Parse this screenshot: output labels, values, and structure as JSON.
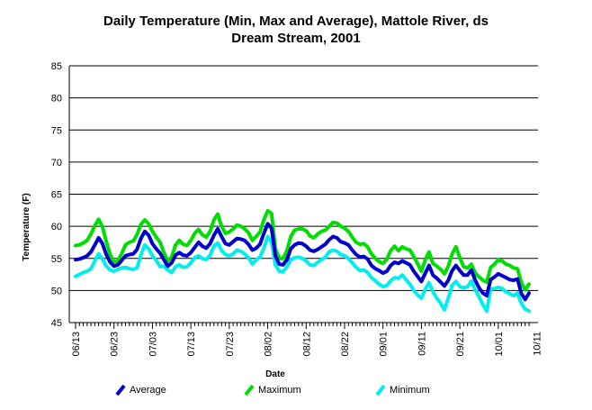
{
  "chart_data": {
    "type": "line",
    "title": "Daily Temperature (Min, Max and Average), Mattole River, ds Dream Stream, 2001",
    "title_lines": [
      "Daily Temperature (Min, Max and Average), Mattole River, ds",
      "Dream Stream, 2001"
    ],
    "xlabel": "Date",
    "ylabel": "Temperature (F)",
    "ylim": [
      45,
      85
    ],
    "yticks": [
      45,
      50,
      55,
      60,
      65,
      70,
      75,
      80,
      85
    ],
    "grid": "horizontal",
    "legend_position": "bottom",
    "x_tick_labels": [
      "06/13",
      "06/23",
      "07/03",
      "07/13",
      "07/23",
      "08/02",
      "08/12",
      "08/22",
      "09/01",
      "09/11",
      "09/21",
      "10/01",
      "10/11"
    ],
    "x_start": "2001-06-13",
    "x_end": "2001-10-19",
    "series": [
      {
        "name": "Average",
        "color": "#0000CC",
        "values": [
          54.8,
          54.9,
          55.1,
          55.4,
          56.0,
          57.1,
          58.2,
          57.3,
          55.6,
          54.4,
          53.8,
          54.0,
          54.7,
          55.4,
          55.6,
          55.7,
          56.4,
          58.1,
          59.2,
          58.6,
          57.3,
          56.5,
          55.8,
          54.8,
          53.8,
          54.3,
          55.5,
          55.9,
          55.5,
          55.4,
          55.9,
          56.7,
          57.5,
          56.9,
          56.6,
          57.3,
          58.6,
          59.6,
          58.4,
          57.3,
          57.1,
          57.6,
          58.1,
          58.0,
          57.8,
          57.2,
          56.3,
          56.6,
          57.2,
          58.9,
          60.4,
          59.7,
          55.4,
          54.1,
          54.0,
          54.8,
          56.5,
          57.1,
          57.4,
          57.3,
          56.9,
          56.3,
          56.1,
          56.4,
          56.8,
          57.2,
          57.9,
          58.4,
          58.2,
          57.6,
          57.4,
          57.1,
          56.3,
          55.6,
          55.2,
          55.3,
          54.9,
          53.9,
          53.4,
          53.1,
          52.7,
          53.0,
          53.9,
          54.4,
          54.2,
          54.6,
          54.3,
          54.0,
          53.0,
          52.2,
          51.4,
          52.7,
          53.9,
          52.4,
          51.9,
          51.3,
          50.7,
          51.6,
          53.1,
          53.9,
          53.1,
          52.4,
          52.4,
          53.2,
          51.6,
          50.4,
          49.6,
          49.2,
          51.7,
          52.1,
          52.6,
          52.3,
          52.0,
          51.7,
          51.6,
          51.8,
          49.5,
          48.6,
          49.6
        ],
        "min_values": [
          54.8
        ]
      },
      {
        "name": "Maximum",
        "color": "#00DD00",
        "values": [
          57.0,
          57.1,
          57.4,
          57.8,
          58.8,
          60.1,
          61.1,
          59.9,
          57.6,
          55.6,
          54.4,
          54.6,
          55.8,
          57.1,
          57.5,
          57.7,
          58.7,
          60.3,
          61.0,
          60.4,
          59.2,
          58.3,
          57.5,
          55.9,
          54.6,
          55.2,
          57.1,
          57.8,
          57.2,
          57.0,
          57.8,
          58.9,
          59.5,
          58.7,
          58.3,
          59.2,
          61.0,
          61.9,
          60.0,
          58.9,
          59.1,
          59.6,
          60.2,
          60.0,
          59.6,
          59.0,
          57.8,
          58.4,
          59.1,
          61.0,
          62.4,
          62.0,
          56.5,
          55.0,
          55.0,
          56.2,
          58.4,
          59.4,
          59.6,
          59.6,
          59.3,
          58.5,
          58.2,
          58.8,
          59.2,
          59.4,
          60.0,
          60.6,
          60.5,
          60.0,
          59.7,
          59.2,
          58.3,
          57.5,
          57.2,
          57.3,
          56.8,
          55.7,
          55.0,
          54.5,
          54.2,
          54.9,
          56.2,
          56.9,
          56.2,
          56.8,
          56.5,
          56.3,
          55.3,
          54.2,
          53.0,
          54.8,
          56.0,
          54.2,
          53.8,
          53.3,
          52.6,
          53.8,
          55.7,
          56.8,
          55.1,
          53.7,
          53.5,
          54.1,
          52.7,
          52.1,
          51.6,
          51.3,
          53.6,
          54.1,
          54.8,
          54.6,
          54.1,
          53.9,
          53.5,
          53.4,
          51.2,
          50.1,
          51.0
        ],
        "min_values": [
          57.0
        ]
      },
      {
        "name": "Minimum",
        "color": "#00EEEE",
        "values": [
          52.2,
          52.5,
          52.8,
          53.0,
          53.4,
          54.6,
          55.7,
          54.9,
          53.8,
          53.2,
          53.0,
          53.3,
          53.5,
          53.6,
          53.4,
          53.3,
          53.5,
          55.5,
          57.1,
          56.5,
          55.4,
          54.7,
          53.7,
          53.8,
          53.2,
          52.8,
          53.7,
          54.0,
          53.6,
          53.7,
          54.3,
          55.1,
          55.4,
          55.0,
          54.8,
          55.5,
          56.9,
          57.4,
          56.2,
          55.6,
          55.4,
          55.7,
          56.3,
          56.1,
          55.7,
          55.1,
          54.1,
          54.8,
          55.2,
          56.6,
          58.4,
          57.5,
          54.0,
          53.0,
          52.9,
          53.7,
          54.8,
          55.1,
          55.2,
          55.0,
          54.6,
          54.0,
          53.9,
          54.4,
          54.8,
          55.2,
          56.0,
          56.3,
          56.1,
          55.6,
          55.4,
          55.0,
          54.3,
          53.6,
          53.1,
          53.2,
          52.8,
          52.0,
          51.5,
          51.0,
          50.6,
          50.8,
          51.5,
          52.0,
          51.9,
          52.4,
          51.7,
          51.0,
          50.0,
          49.3,
          48.8,
          50.2,
          51.2,
          49.8,
          48.8,
          48.0,
          47.0,
          48.8,
          50.8,
          51.4,
          50.6,
          50.4,
          50.6,
          51.5,
          50.1,
          49.0,
          47.8,
          46.8,
          50.2,
          50.3,
          50.5,
          50.3,
          49.8,
          49.5,
          49.2,
          49.6,
          48.0,
          47.1,
          46.8
        ],
        "min_values": [
          52.2
        ]
      }
    ]
  }
}
